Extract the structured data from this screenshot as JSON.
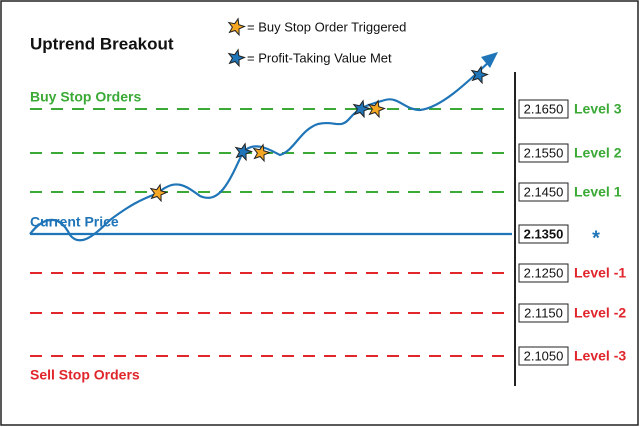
{
  "title": "Uptrend Breakout",
  "legend": [
    {
      "label": "= Buy Stop Order Triggered"
    },
    {
      "label": "= Profit-Taking Value Met"
    }
  ],
  "buy_stop": {
    "label": "Buy Stop Orders",
    "levels": [
      {
        "price": "2.1650",
        "label": "Level 3"
      },
      {
        "price": "2.1550",
        "label": "Level 2"
      },
      {
        "price": "2.1450",
        "label": "Level 1"
      }
    ]
  },
  "current": {
    "label": "Current Price",
    "price": "2.1350",
    "marker": "*"
  },
  "sell_stop": {
    "label": "Sell Stop Orders",
    "levels": [
      {
        "price": "2.1250",
        "label": "Level -1"
      },
      {
        "price": "2.1150",
        "label": "Level -2"
      },
      {
        "price": "2.1050",
        "label": "Level -3"
      }
    ]
  }
}
